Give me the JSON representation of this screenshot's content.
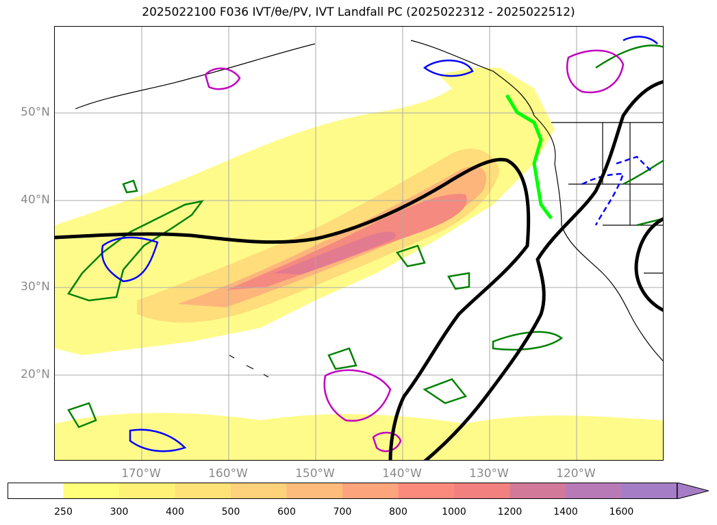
{
  "title": "2025022100 F036 IVT/θe/PV, IVT Landfall PC (2025022312 - 2025022512)",
  "lat_labels": [
    "50°N",
    "40°N",
    "30°N",
    "20°N"
  ],
  "lon_labels": [
    "170°W",
    "160°W",
    "150°W",
    "140°W",
    "130°W",
    "120°W"
  ],
  "colorbar": {
    "ticks": [
      "250",
      "300",
      "400",
      "500",
      "600",
      "700",
      "800",
      "1000",
      "1200",
      "1400",
      "1600"
    ],
    "colors": [
      "#ffffff",
      "#ffff7a",
      "#fef176",
      "#fee277",
      "#fdd27a",
      "#fdbc7c",
      "#fca47b",
      "#fb8a7c",
      "#f2807e",
      "#d27898",
      "#b87ab7",
      "#a57dc6"
    ]
  },
  "map": {
    "ivt_fill_colors": {
      "light": "#fffb8a",
      "mid": "#fedd7a",
      "orange": "#fdb57b",
      "red": "#f58a80",
      "pink": "#e27a90"
    },
    "theta_contour_color": "#000000",
    "pv_green_color": "#008000",
    "pv_blue_color": "#0000ff",
    "pv_magenta_color": "#c000c0",
    "landfall_color": "#00ff00"
  }
}
